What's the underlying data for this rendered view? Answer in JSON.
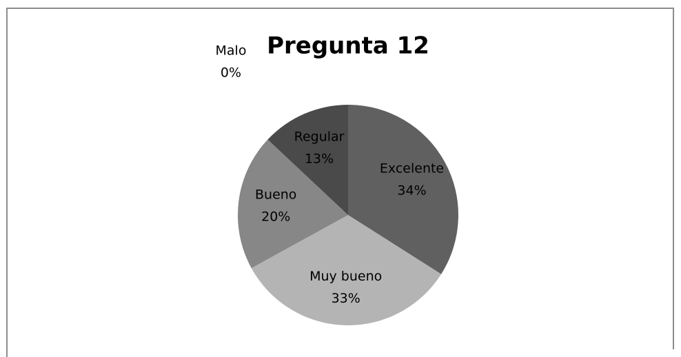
{
  "chart_data": {
    "type": "pie",
    "title": "Pregunta 12",
    "categories": [
      "Excelente",
      "Muy bueno",
      "Bueno",
      "Regular",
      "Malo"
    ],
    "values": [
      34,
      33,
      20,
      13,
      0
    ],
    "value_labels": [
      "34%",
      "33%",
      "20%",
      "13%",
      "0%"
    ],
    "colors": [
      "#606060",
      "#b4b4b4",
      "#878787",
      "#4a4a4a",
      "#2a2a2a"
    ]
  }
}
